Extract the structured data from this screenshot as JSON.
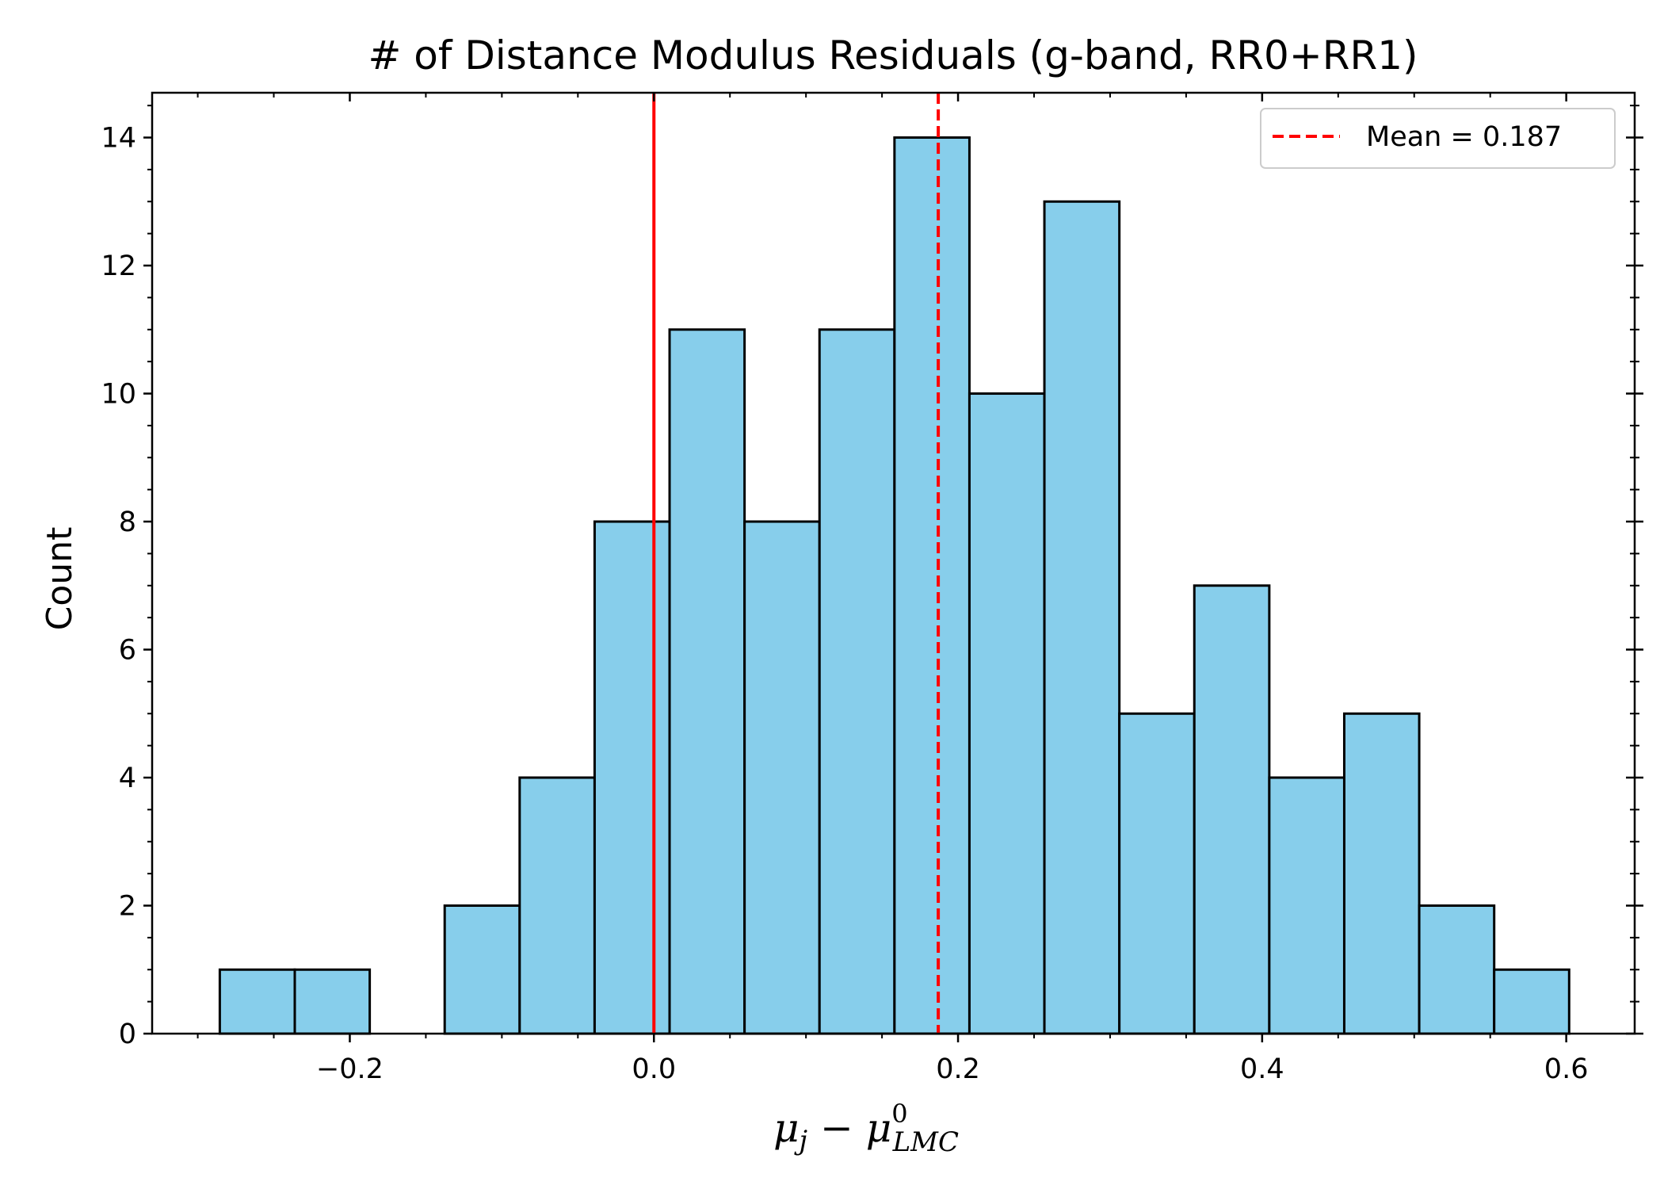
{
  "chart_data": {
    "type": "bar",
    "title": "# of Distance Modulus Residuals (g-band, RR0+RR1)",
    "xlabel": "μj − μ⁰LMC",
    "xlabel_parts": {
      "mu": "μ",
      "sub_j": "j",
      "minus": " − ",
      "mu2": "μ",
      "sup": "0",
      "sub": "LMC"
    },
    "ylabel": "Count",
    "xlim": [
      -0.33,
      0.645
    ],
    "ylim": [
      0,
      14.7
    ],
    "xticks": [
      -0.2,
      0.0,
      0.2,
      0.4,
      0.6
    ],
    "xtick_labels": [
      "−0.2",
      "0.0",
      "0.2",
      "0.4",
      "0.6"
    ],
    "yticks": [
      0,
      2,
      4,
      6,
      8,
      10,
      12,
      14
    ],
    "ytick_labels": [
      "0",
      "2",
      "4",
      "6",
      "8",
      "10",
      "12",
      "14"
    ],
    "bin_edges": [
      -0.2855,
      -0.2362,
      -0.1869,
      -0.1376,
      -0.0883,
      -0.039,
      0.0103,
      0.0596,
      0.1089,
      0.1582,
      0.2075,
      0.2568,
      0.3061,
      0.3554,
      0.4047,
      0.454,
      0.5033,
      0.5526,
      0.6019
    ],
    "values": [
      1,
      1,
      0,
      2,
      4,
      8,
      11,
      8,
      11,
      14,
      10,
      13,
      5,
      7,
      4,
      5,
      2,
      1
    ],
    "reference_line": {
      "x": 0.0,
      "color": "#ff0000",
      "style": "solid"
    },
    "mean_line": {
      "x": 0.187,
      "color": "#ff0000",
      "style": "dashed"
    },
    "legend": {
      "entries": [
        "Mean = 0.187"
      ],
      "placement": "top-right"
    },
    "bar_color": "#87ceeb",
    "edge_color": "#000000",
    "grid": false
  }
}
